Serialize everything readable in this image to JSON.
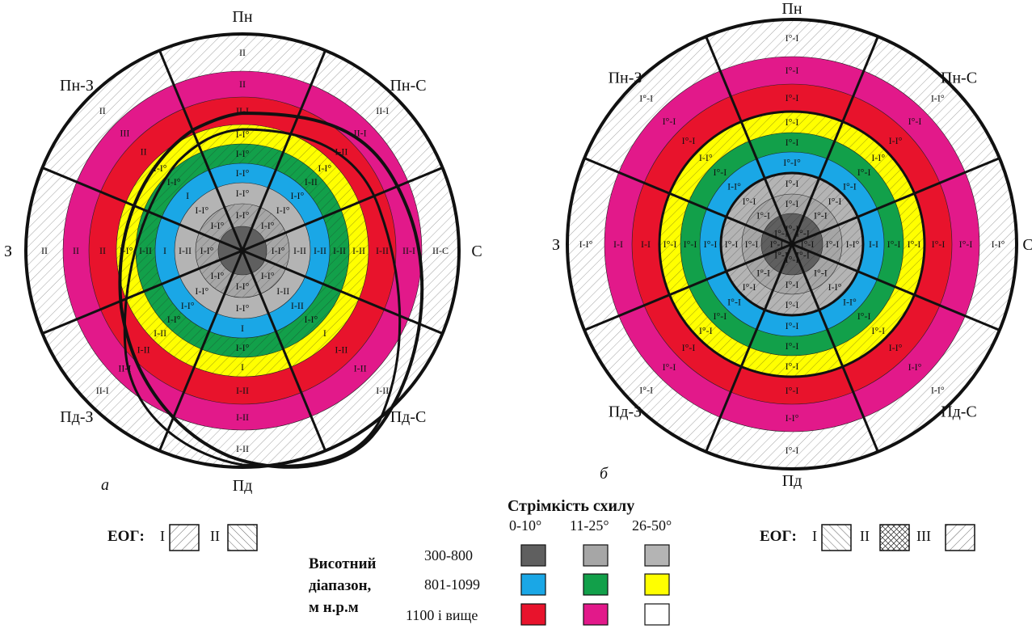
{
  "figure": {
    "panel_a": "а",
    "panel_b": "б",
    "directions": [
      "Пн",
      "Пн-С",
      "С",
      "Пд-С",
      "Пд",
      "Пд-З",
      "З",
      "Пн-З"
    ]
  },
  "rings_a": [
    {
      "color": "#5f5f5f",
      "hatch": false,
      "labels": [
        "",
        "",
        "",
        "",
        "",
        "",
        "",
        ""
      ]
    },
    {
      "color": "#a6a6a6",
      "hatch": true,
      "labels": [
        "I-I°",
        "I-I°",
        "I-I°",
        "I-I°",
        "I-I°",
        "I-I°",
        "I-I°",
        "I-I°"
      ]
    },
    {
      "color": "#b4b4b4",
      "hatch": false,
      "labels": [
        "I-I°",
        "I-I°",
        "I-II",
        "I-II",
        "I-I°",
        "I-I°",
        "I-II",
        "I-I°"
      ]
    },
    {
      "color": "#1aa7e6",
      "hatch": false,
      "labels": [
        "I-I°",
        "I-I°",
        "I-II",
        "I-II",
        "I",
        "I-I°",
        "I",
        "I"
      ]
    },
    {
      "color": "#12a04a",
      "hatch": true,
      "labels": [
        "I-I°",
        "I-II",
        "I-II",
        "I-I°",
        "I-I°",
        "I-I°",
        "I-II",
        "I-I°"
      ]
    },
    {
      "color": "#ffff00",
      "hatch": true,
      "labels": [
        "I-I°",
        "I-I°",
        "I-II",
        "I",
        "I",
        "I-II",
        "I-I°",
        "I-I°"
      ]
    },
    {
      "color": "#e8132c",
      "hatch": false,
      "labels": [
        "II-I",
        "I-II",
        "I-II",
        "I-II",
        "I-II",
        "I-II",
        "II",
        "II"
      ]
    },
    {
      "color": "#e2198a",
      "hatch": false,
      "labels": [
        "II",
        "II-I",
        "II-I",
        "I-II",
        "I-II",
        "II-I",
        "II",
        "III"
      ]
    },
    {
      "color": "#ffffff",
      "hatch": true,
      "labels": [
        "II",
        "II-I",
        "II-C",
        "I-II",
        "I-II",
        "II-I",
        "II",
        "II"
      ]
    }
  ],
  "rings_b": [
    {
      "color": "#5f5f5f",
      "hatch": true,
      "labels": [
        "I°-I",
        "I°-I",
        "I°-I",
        "I°-I",
        "I°-I",
        "I°-I",
        "I°-I",
        "I°-I"
      ]
    },
    {
      "color": "#a6a6a6",
      "hatch": true,
      "labels": [
        "I°-I",
        "I°-I",
        "I°-I",
        "I°-I",
        "I°-I",
        "I°-I",
        "I°-I",
        "I°-I"
      ]
    },
    {
      "color": "#b4b4b4",
      "hatch": true,
      "labels": [
        "I°-I",
        "I°-I",
        "I-I°",
        "I-I°",
        "I°-I",
        "I°-I",
        "I°-I",
        "I°-I"
      ]
    },
    {
      "color": "#1aa7e6",
      "hatch": false,
      "labels": [
        "I°-I°",
        "I°-I",
        "I-I",
        "I-I°",
        "I°-I",
        "I°-I",
        "I°-I",
        "I-I°"
      ]
    },
    {
      "color": "#12a04a",
      "hatch": false,
      "labels": [
        "I°-I",
        "I°-I",
        "I°-I",
        "I°-I",
        "I°-I",
        "I°-I",
        "I°-I",
        "I°-I"
      ]
    },
    {
      "color": "#ffff00",
      "hatch": true,
      "labels": [
        "I°-I",
        "I-I°",
        "I°-I",
        "I°-I",
        "I°-I",
        "I°-I",
        "I°-I",
        "I-I°"
      ]
    },
    {
      "color": "#e8132c",
      "hatch": false,
      "labels": [
        "I°-I",
        "I-I°",
        "I°-I",
        "I-I°",
        "I°-I",
        "I°-I",
        "I-I",
        "I°-I"
      ]
    },
    {
      "color": "#e2198a",
      "hatch": false,
      "labels": [
        "I°-I",
        "I°-I",
        "I°-I",
        "I-I°",
        "I-I°",
        "I°-I",
        "I-I",
        "I°-I"
      ]
    },
    {
      "color": "#ffffff",
      "hatch": true,
      "labels": [
        "I°-I",
        "I-I°",
        "I-I°",
        "I-I°",
        "I°-I",
        "I°-I",
        "I-I°",
        "I°-I"
      ]
    }
  ],
  "legend": {
    "steepness_title": "Стрімкість схилу",
    "steepness": [
      "0-10°",
      "11-25°",
      "26-50°"
    ],
    "altitude_title_1": "Висотний",
    "altitude_title_2": "діапазон,",
    "altitude_title_3": "м н.р.м",
    "altitude_rows": [
      "300-800",
      "801-1099",
      "1100 і вище"
    ],
    "swatches": [
      [
        "#5f5f5f",
        "#a6a6a6",
        "#b4b4b4"
      ],
      [
        "#1aa7e6",
        "#12a04a",
        "#ffff00"
      ],
      [
        "#e8132c",
        "#e2198a",
        "#ffffff"
      ]
    ],
    "eog_label": "ЕОГ:",
    "eog_a": [
      "I",
      "II"
    ],
    "eog_b": [
      "I",
      "II",
      "III"
    ]
  },
  "colors": {
    "outline": "#111111"
  }
}
